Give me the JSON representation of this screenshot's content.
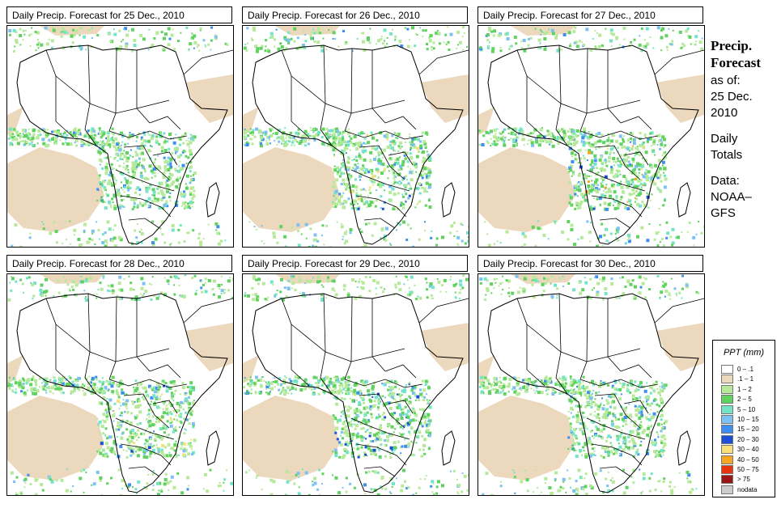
{
  "panels": [
    {
      "title": "Daily Precip. Forecast for  25 Dec., 2010"
    },
    {
      "title": "Daily Precip. Forecast for  26 Dec., 2010"
    },
    {
      "title": "Daily Precip. Forecast for  27 Dec., 2010"
    },
    {
      "title": "Daily Precip. Forecast for  28 Dec., 2010"
    },
    {
      "title": "Daily Precip. Forecast for  29 Dec., 2010"
    },
    {
      "title": "Daily Precip. Forecast for  30 Dec., 2010"
    }
  ],
  "sidebar": {
    "title_line1": "Precip.",
    "title_line2": "Forecast",
    "asof_line1": "as of:",
    "asof_line2": "25 Dec.",
    "asof_line3": "2010",
    "daily_line1": "Daily",
    "daily_line2": "Totals",
    "data_line1": "Data:",
    "data_line2": "NOAA–",
    "data_line3": "GFS"
  },
  "legend": {
    "title": "PPT (mm)",
    "items": [
      {
        "label": "0 – .1",
        "color": "#ffffff"
      },
      {
        "label": ".1 – 1",
        "color": "#ecd8bd"
      },
      {
        "label": "1 – 2",
        "color": "#b6ea9a"
      },
      {
        "label": "2 – 5",
        "color": "#5fd25f"
      },
      {
        "label": "5 – 10",
        "color": "#73e4c8"
      },
      {
        "label": "10 – 15",
        "color": "#7cc1f2"
      },
      {
        "label": "15 – 20",
        "color": "#3f8ff0"
      },
      {
        "label": "20 – 30",
        "color": "#1a4fd6"
      },
      {
        "label": "30 – 40",
        "color": "#f7df7a"
      },
      {
        "label": "40 – 50",
        "color": "#f5a623"
      },
      {
        "label": "50 – 75",
        "color": "#e8340e"
      },
      {
        "label": "> 75",
        "color": "#9b1515"
      },
      {
        "label": "nodata",
        "color": "#cccccc"
      }
    ]
  }
}
